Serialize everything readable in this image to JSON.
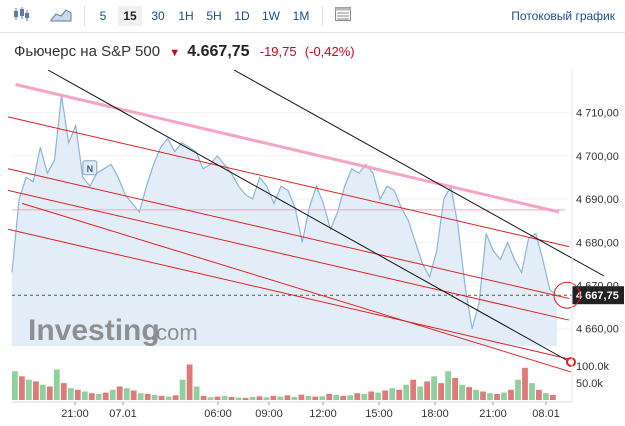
{
  "toolbar": {
    "buttons": [
      {
        "label": "5",
        "active": false
      },
      {
        "label": "15",
        "active": true
      },
      {
        "label": "30",
        "active": false
      },
      {
        "label": "1H",
        "active": false
      },
      {
        "label": "5H",
        "active": false
      },
      {
        "label": "1D",
        "active": false
      },
      {
        "label": "1W",
        "active": false
      },
      {
        "label": "1M",
        "active": false
      }
    ],
    "stream_label": "Потоковый график",
    "icons": [
      "candlestick-icon",
      "area-chart-icon",
      "table-icon"
    ]
  },
  "header": {
    "name": "Фьючерс на S&P 500",
    "price": "4.667,75",
    "change": "-19,75",
    "change_pct": "(-0,42%)",
    "down_color": "#d0021b"
  },
  "watermark": {
    "brand": "Investing",
    "suffix": ".com"
  },
  "chart_data": {
    "type": "area",
    "x_ticks": [
      "21:00",
      "07.01",
      "06:00",
      "09:00",
      "12:00",
      "15:00",
      "18:00",
      "21:00",
      "08.01"
    ],
    "y_ticks": [
      "4 710,00",
      "4 700,00",
      "4 690,00",
      "4 680,00",
      "4 670,00",
      "4 660,00"
    ],
    "ylim": [
      4656,
      4718
    ],
    "last_price_label": "4 667,75",
    "last_price": 4667.75,
    "reference_line": 4687.5,
    "price_series": [
      4673,
      4690,
      4695,
      4694,
      4702,
      4696,
      4699,
      4714,
      4703,
      4707,
      4695,
      4693,
      4696,
      4697,
      4698,
      4695,
      4691,
      4689,
      4687,
      4693,
      4698,
      4702,
      4704,
      4701,
      4703,
      4702,
      4701,
      4697,
      4698,
      4700,
      4698,
      4696,
      4693,
      4691,
      4690,
      4695,
      4693,
      4689,
      4693,
      4692,
      4688,
      4680,
      4688,
      4693,
      4689,
      4683,
      4687,
      4693,
      4697,
      4696,
      4698,
      4696,
      4690,
      4693,
      4692,
      4688,
      4685,
      4680,
      4675,
      4672,
      4678,
      4690,
      4693,
      4684,
      4670,
      4660,
      4666,
      4682,
      4678,
      4676,
      4680,
      4676,
      4673,
      4681,
      4682,
      4676,
      4669,
      4667.75
    ],
    "volume_unit": "50.0k",
    "volume_ticks": [
      "100.0k",
      "50.0k"
    ],
    "volume_max": 130,
    "volume_series": [
      {
        "v": 85,
        "up": true
      },
      {
        "v": 70,
        "up": false
      },
      {
        "v": 60,
        "up": true
      },
      {
        "v": 55,
        "up": false
      },
      {
        "v": 45,
        "up": true
      },
      {
        "v": 40,
        "up": false
      },
      {
        "v": 90,
        "up": true
      },
      {
        "v": 50,
        "up": false
      },
      {
        "v": 35,
        "up": true
      },
      {
        "v": 30,
        "up": false
      },
      {
        "v": 25,
        "up": true
      },
      {
        "v": 20,
        "up": false
      },
      {
        "v": 18,
        "up": true
      },
      {
        "v": 22,
        "up": false
      },
      {
        "v": 30,
        "up": true
      },
      {
        "v": 40,
        "up": false
      },
      {
        "v": 35,
        "up": true
      },
      {
        "v": 28,
        "up": false
      },
      {
        "v": 20,
        "up": true
      },
      {
        "v": 18,
        "up": false
      },
      {
        "v": 15,
        "up": true
      },
      {
        "v": 12,
        "up": false
      },
      {
        "v": 10,
        "up": true
      },
      {
        "v": 14,
        "up": false
      },
      {
        "v": 60,
        "up": true
      },
      {
        "v": 105,
        "up": false
      },
      {
        "v": 40,
        "up": true
      },
      {
        "v": 12,
        "up": false
      },
      {
        "v": 8,
        "up": true
      },
      {
        "v": 10,
        "up": false
      },
      {
        "v": 12,
        "up": true
      },
      {
        "v": 9,
        "up": false
      },
      {
        "v": 7,
        "up": true
      },
      {
        "v": 6,
        "up": false
      },
      {
        "v": 9,
        "up": true
      },
      {
        "v": 11,
        "up": false
      },
      {
        "v": 8,
        "up": true
      },
      {
        "v": 12,
        "up": false
      },
      {
        "v": 10,
        "up": true
      },
      {
        "v": 14,
        "up": false
      },
      {
        "v": 9,
        "up": true
      },
      {
        "v": 16,
        "up": false
      },
      {
        "v": 12,
        "up": true
      },
      {
        "v": 10,
        "up": false
      },
      {
        "v": 11,
        "up": true
      },
      {
        "v": 18,
        "up": false
      },
      {
        "v": 15,
        "up": true
      },
      {
        "v": 12,
        "up": false
      },
      {
        "v": 14,
        "up": true
      },
      {
        "v": 20,
        "up": false
      },
      {
        "v": 18,
        "up": true
      },
      {
        "v": 25,
        "up": false
      },
      {
        "v": 22,
        "up": true
      },
      {
        "v": 28,
        "up": false
      },
      {
        "v": 35,
        "up": true
      },
      {
        "v": 30,
        "up": false
      },
      {
        "v": 45,
        "up": true
      },
      {
        "v": 60,
        "up": false
      },
      {
        "v": 40,
        "up": true
      },
      {
        "v": 55,
        "up": false
      },
      {
        "v": 70,
        "up": true
      },
      {
        "v": 50,
        "up": false
      },
      {
        "v": 85,
        "up": true
      },
      {
        "v": 65,
        "up": false
      },
      {
        "v": 45,
        "up": true
      },
      {
        "v": 38,
        "up": false
      },
      {
        "v": 30,
        "up": true
      },
      {
        "v": 25,
        "up": false
      },
      {
        "v": 20,
        "up": true
      },
      {
        "v": 18,
        "up": false
      },
      {
        "v": 22,
        "up": true
      },
      {
        "v": 30,
        "up": false
      },
      {
        "v": 60,
        "up": true
      },
      {
        "v": 95,
        "up": false
      },
      {
        "v": 50,
        "up": true
      },
      {
        "v": 30,
        "up": false
      },
      {
        "v": 20,
        "up": true
      },
      {
        "v": 15,
        "up": false
      }
    ],
    "colors": {
      "line": "#8eb4d6",
      "area": "#e3edf7",
      "channel": "#e02020",
      "resistance": "#f5a3c7",
      "trend": "#111111",
      "vol_up": "#8fd19e",
      "vol_down": "#e07a7a"
    }
  }
}
